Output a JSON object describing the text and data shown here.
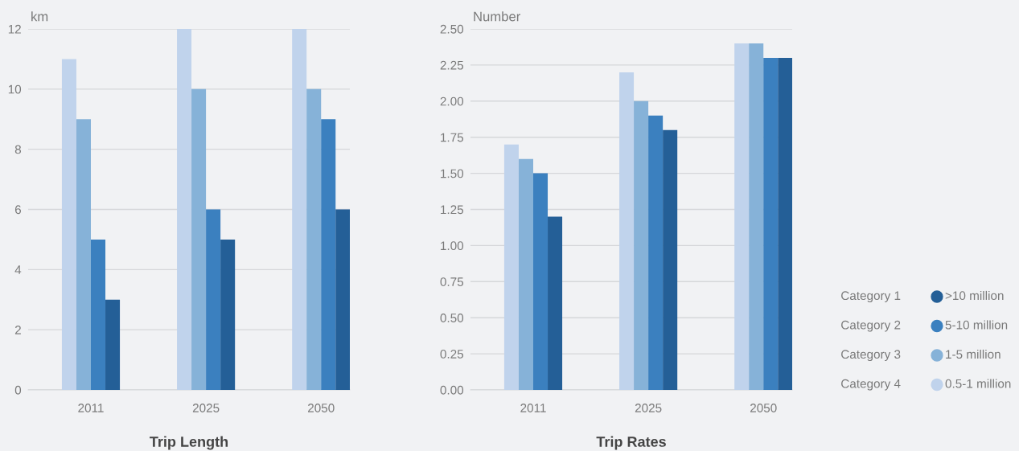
{
  "chart_data": [
    {
      "type": "bar",
      "title": "Trip Length",
      "ylabel": "km",
      "categories": [
        "2011",
        "2025",
        "2050"
      ],
      "series": [
        {
          "color": "#c0d3ec",
          "values": [
            11,
            12,
            12
          ]
        },
        {
          "color": "#86b2d8",
          "values": [
            9,
            10,
            10
          ]
        },
        {
          "color": "#3b80bf",
          "values": [
            5,
            6,
            9
          ]
        },
        {
          "color": "#245f97",
          "values": [
            3,
            5,
            6
          ]
        }
      ],
      "ylim": [
        0,
        12
      ],
      "yticks": [
        0,
        2,
        4,
        6,
        8,
        10,
        12
      ],
      "grid": "y"
    },
    {
      "type": "bar",
      "title": "Trip Rates",
      "ylabel": "Number",
      "categories": [
        "2011",
        "2025",
        "2050"
      ],
      "series": [
        {
          "name": "0.5-1 million",
          "color": "#c0d3ec",
          "values": [
            1.7,
            2.2,
            2.4
          ]
        },
        {
          "name": "1-5 million",
          "color": "#86b2d8",
          "values": [
            1.6,
            2.0,
            2.4
          ]
        },
        {
          "name": "5-10 million",
          "color": "#3b80bf",
          "values": [
            1.5,
            1.9,
            2.3
          ]
        },
        {
          "name": ">10 million",
          "color": "#245f97",
          "values": [
            1.2,
            1.8,
            2.3
          ]
        }
      ],
      "ylim": [
        0,
        2.5
      ],
      "yticks": [
        {
          "value": 0,
          "label": "0.00"
        },
        {
          "value": 0.25,
          "label": "0.25"
        },
        {
          "value": 0.5,
          "label": "0.50"
        },
        {
          "value": 0.75,
          "label": "0.75"
        },
        {
          "value": 1,
          "label": "1.00"
        },
        {
          "value": 1.25,
          "label": "1.25"
        },
        {
          "value": 1.5,
          "label": "1.50"
        },
        {
          "value": 1.75,
          "label": "1.75"
        },
        {
          "value": 2,
          "label": "2.00"
        },
        {
          "value": 2.25,
          "label": "2.25"
        },
        {
          "value": 2.5,
          "label": "2.50"
        }
      ],
      "grid": "y",
      "legend": "right",
      "annotations": [
        "Category 1",
        "Category 2",
        "Category 3",
        "Category 4"
      ]
    }
  ]
}
